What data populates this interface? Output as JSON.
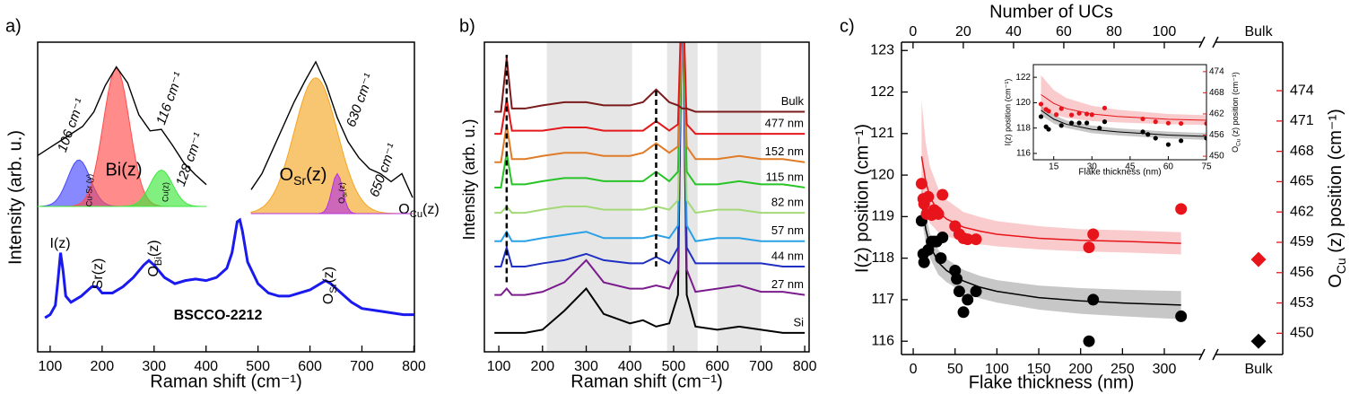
{
  "chart_data": [
    {
      "type": "line",
      "panel_label": "a)",
      "xlabel": "Raman shift (cm⁻¹)",
      "ylabel": "Intensity (arb. u.)",
      "xlim": [
        76,
        801
      ],
      "xticks": [
        100,
        200,
        300,
        400,
        500,
        600,
        700,
        800
      ],
      "ylim": [
        0,
        10
      ],
      "x": [
        90,
        100,
        110,
        115,
        120,
        125,
        130,
        140,
        160,
        180,
        190,
        200,
        220,
        240,
        260,
        280,
        290,
        300,
        320,
        340,
        360,
        380,
        400,
        420,
        440,
        450,
        460,
        465,
        470,
        480,
        500,
        520,
        540,
        560,
        580,
        600,
        620,
        630,
        640,
        660,
        680,
        700,
        740,
        780,
        800
      ],
      "series": [
        {
          "name": "BSCCO-2212",
          "color": "#1a1aee",
          "values": [
            1.1,
            1.2,
            1.5,
            2.3,
            3.2,
            2.6,
            1.8,
            1.6,
            1.8,
            2.1,
            2.1,
            1.9,
            1.9,
            2.1,
            2.4,
            2.8,
            2.95,
            2.8,
            2.4,
            2.2,
            2.3,
            2.35,
            2.3,
            2.4,
            2.7,
            3.2,
            4.2,
            4.26,
            3.9,
            2.9,
            2.2,
            1.9,
            1.8,
            1.8,
            1.9,
            2.0,
            2.2,
            2.3,
            2.2,
            1.9,
            1.6,
            1.4,
            1.3,
            1.2,
            1.2
          ]
        }
      ],
      "peaks": [
        {
          "text": "I(z)"
        },
        {
          "text": "Sr(z)"
        },
        {
          "text": "O",
          "sub": "Bi",
          "suffix": "(z)"
        },
        {
          "text": "O",
          "sub": "Cu",
          "suffix": "(z)"
        },
        {
          "text": "O",
          "sub": "Sr",
          "suffix": "(z)"
        }
      ],
      "insets": [
        {
          "xlim": [
            95,
            140
          ],
          "ylim": [
            0,
            10
          ],
          "x": [
            95,
            98,
            101,
            104,
            107,
            110,
            113,
            116,
            119,
            122,
            125,
            128,
            131,
            134,
            137,
            140
          ],
          "values": [
            3.5,
            4.0,
            4.5,
            5.0,
            5.5,
            6.5,
            8.3,
            9.6,
            8.5,
            6.3,
            5.2,
            5.3,
            4.2,
            3.0,
            2.2,
            1.5
          ],
          "components": [
            {
              "label": "106 cm⁻¹",
              "name": "Cu-Sr (y)",
              "center": 106,
              "amplitude": 3.2,
              "width": 3,
              "color": "#4a4aff"
            },
            {
              "label": "116 cm⁻¹",
              "name": "Bi(z)",
              "center": 116,
              "amplitude": 9.5,
              "width": 3.5,
              "color": "#ff4d4d"
            },
            {
              "label": "128 cm⁻¹",
              "name": "Cu(z)",
              "center": 128,
              "amplitude": 2.5,
              "width": 3,
              "color": "#3ee83e"
            }
          ]
        },
        {
          "xlim": [
            570,
            720
          ],
          "ylim": [
            0,
            10
          ],
          "x": [
            570,
            580,
            590,
            600,
            610,
            620,
            630,
            640,
            650,
            660,
            670,
            680,
            690,
            700,
            710,
            720
          ],
          "values": [
            1.5,
            2.5,
            4.0,
            5.5,
            7.0,
            8.3,
            9.5,
            8.0,
            6.0,
            4.5,
            3.5,
            2.8,
            2.5,
            2.0,
            2.5,
            1.0
          ],
          "components": [
            {
              "label": "630 cm⁻¹",
              "name": {
                "text": "O",
                "sub": "Sr",
                "suffix": "(z)"
              },
              "center": 630,
              "amplitude": 8.5,
              "width": 20,
              "color": "#f5a623"
            },
            {
              "label": "650 cm⁻¹",
              "name": {
                "text": "O",
                "sub": "Sr",
                "suffix": "(z)"
              },
              "center": 650,
              "amplitude": 2.5,
              "width": 5,
              "color": "#b534e0"
            }
          ]
        }
      ]
    },
    {
      "type": "line",
      "panel_label": "b)",
      "xlabel": "Raman shift (cm⁻¹)",
      "ylabel": "Intensity (arb. u.)",
      "xlim": [
        67,
        810
      ],
      "xticks": [
        100,
        200,
        300,
        400,
        500,
        600,
        700,
        800
      ],
      "ylim": [
        0,
        9.8
      ],
      "x": [
        90,
        105,
        118,
        130,
        160,
        200,
        250,
        300,
        340,
        400,
        430,
        460,
        490,
        510,
        520,
        530,
        550,
        600,
        650,
        700,
        750,
        800
      ],
      "regions": [
        [
          210,
          405
        ],
        [
          485,
          555
        ],
        [
          600,
          700
        ]
      ],
      "dashed": [
        {
          "x": 118,
          "y": [
            2.2,
            9.4
          ]
        },
        {
          "x": 460,
          "y": [
            2.7,
            8.3
          ]
        }
      ],
      "series": [
        {
          "name": "Si",
          "color": "#000000",
          "values": [
            0.6,
            0.6,
            0.6,
            0.6,
            0.6,
            0.7,
            1.3,
            2.0,
            1.2,
            0.9,
            1.0,
            0.8,
            0.9,
            1.8,
            12,
            1.8,
            0.8,
            0.7,
            0.8,
            0.7,
            0.6,
            0.6
          ]
        },
        {
          "name": "27 nm",
          "color": "#7a1c8c",
          "values": [
            1.8,
            1.8,
            2.0,
            1.8,
            1.8,
            1.9,
            2.2,
            2.9,
            2.2,
            2.0,
            2.0,
            2.1,
            2.0,
            2.6,
            12,
            2.6,
            1.9,
            2.0,
            2.1,
            1.9,
            1.9,
            1.8
          ]
        },
        {
          "name": "44 nm",
          "color": "#1f2fc2",
          "values": [
            2.7,
            2.7,
            3.3,
            2.7,
            2.7,
            2.8,
            2.9,
            3.1,
            2.9,
            2.8,
            2.8,
            3.0,
            2.8,
            3.3,
            12,
            3.3,
            2.8,
            2.8,
            2.8,
            2.8,
            2.7,
            2.7
          ]
        },
        {
          "name": "57 nm",
          "color": "#2aa0e6",
          "values": [
            3.5,
            3.5,
            3.8,
            3.5,
            3.5,
            3.6,
            3.7,
            3.8,
            3.6,
            3.6,
            3.6,
            3.7,
            3.6,
            4.0,
            12,
            4.0,
            3.5,
            3.6,
            3.6,
            3.5,
            3.5,
            3.5
          ]
        },
        {
          "name": "82 nm",
          "color": "#a3d977",
          "values": [
            4.4,
            4.4,
            4.6,
            4.4,
            4.4,
            4.5,
            4.6,
            4.6,
            4.5,
            4.5,
            4.5,
            4.6,
            4.5,
            4.8,
            12,
            4.8,
            4.4,
            4.5,
            4.5,
            4.4,
            4.4,
            4.4
          ]
        },
        {
          "name": "115 nm",
          "color": "#27c427",
          "values": [
            5.2,
            5.2,
            6.3,
            5.3,
            5.3,
            5.4,
            5.5,
            5.5,
            5.4,
            5.4,
            5.4,
            5.7,
            5.4,
            5.7,
            12,
            5.7,
            5.3,
            5.3,
            5.4,
            5.3,
            5.3,
            5.2
          ]
        },
        {
          "name": "152 nm",
          "color": "#e07b28",
          "values": [
            6.0,
            6.0,
            7.2,
            6.1,
            6.1,
            6.2,
            6.3,
            6.3,
            6.2,
            6.2,
            6.3,
            6.6,
            6.3,
            6.5,
            12,
            6.5,
            6.1,
            6.1,
            6.2,
            6.1,
            6.1,
            6.0
          ]
        },
        {
          "name": "477 nm",
          "color": "#e3191c",
          "values": [
            6.9,
            6.9,
            8.0,
            7.0,
            7.0,
            7.0,
            7.1,
            7.1,
            7.0,
            7.0,
            7.0,
            7.3,
            7.0,
            7.2,
            12,
            7.2,
            6.9,
            6.9,
            6.9,
            6.9,
            6.9,
            6.9
          ]
        },
        {
          "name": "Bulk",
          "color": "#7b1a1a",
          "values": [
            7.6,
            7.6,
            9.3,
            7.7,
            7.7,
            7.8,
            7.9,
            7.9,
            7.8,
            7.8,
            7.9,
            8.3,
            7.9,
            7.8,
            7.7,
            7.7,
            7.6,
            7.6,
            7.6,
            7.6,
            7.6,
            7.6
          ]
        }
      ]
    },
    {
      "type": "scatter",
      "panel_label": "c)",
      "xlabel": "Flake thickness (nm)",
      "x2label": "Number of UCs",
      "ylabel": "I(z) position (cm⁻¹)",
      "y2label": {
        "text": "O",
        "sub": "Cu",
        "suffix": " (z) position (cm⁻¹)"
      },
      "bulk_label": "Bulk",
      "xlim": [
        -14,
        345
      ],
      "xticks": [
        0,
        50,
        100,
        150,
        200,
        250,
        300
      ],
      "x2lim": [
        -4.6,
        115
      ],
      "x2ticks": [
        0,
        20,
        40,
        60,
        80,
        100
      ],
      "ylim": [
        115.68,
        123.2
      ],
      "yticks": [
        116,
        117,
        118,
        119,
        120,
        121,
        122,
        123
      ],
      "y2lim": [
        447.9,
        478.8
      ],
      "y2ticks": [
        450,
        453,
        456,
        459,
        462,
        465,
        468,
        471,
        474
      ],
      "series": [
        {
          "color": "#000000",
          "x": [
            10,
            12,
            13,
            18,
            22,
            25,
            28,
            33,
            35,
            50,
            52,
            55,
            60,
            65,
            75,
            210,
            215,
            320
          ],
          "values": [
            118.9,
            118.1,
            117.9,
            118.2,
            118.4,
            118.4,
            118.4,
            118.0,
            118.5,
            117.7,
            117.5,
            117.2,
            116.7,
            117.0,
            117.2,
            116.0,
            117.0,
            116.6
          ],
          "bulk": 116.0
        },
        {
          "color": "#e8141b",
          "axis": "y2",
          "x": [
            10,
            12,
            13,
            16,
            18,
            22,
            25,
            28,
            30,
            35,
            50,
            55,
            60,
            65,
            75,
            210,
            215,
            320
          ],
          "values": [
            464.8,
            463.3,
            462.8,
            461.8,
            463.5,
            461.7,
            462.2,
            462.0,
            461.8,
            463.7,
            460.6,
            459.8,
            459.4,
            459.3,
            459.3,
            458.5,
            459.8,
            462.3
          ],
          "bulk": 457.3
        }
      ],
      "fits": [
        {
          "color": "#000000",
          "x": [
            10,
            15,
            20,
            30,
            40,
            60,
            80,
            100,
            150,
            200,
            250,
            320
          ],
          "values": [
            119.4,
            118.7,
            118.3,
            117.9,
            117.7,
            117.45,
            117.3,
            117.2,
            117.05,
            116.97,
            116.92,
            116.87
          ],
          "lower": [
            119.0,
            118.35,
            118.0,
            117.6,
            117.42,
            117.18,
            117.03,
            116.93,
            116.76,
            116.66,
            116.6,
            116.53
          ],
          "upper": [
            119.8,
            119.05,
            118.6,
            118.2,
            117.98,
            117.72,
            117.57,
            117.47,
            117.34,
            117.28,
            117.24,
            117.21
          ]
        },
        {
          "color": "#e8141b",
          "axis": "y2",
          "x": [
            10,
            15,
            20,
            30,
            40,
            60,
            80,
            100,
            150,
            200,
            250,
            320
          ],
          "values": [
            467.5,
            465.0,
            463.5,
            462.0,
            461.3,
            460.5,
            460.1,
            459.8,
            459.4,
            459.2,
            459.1,
            458.9
          ],
          "lower": [
            463.0,
            461.8,
            460.9,
            460.0,
            459.6,
            459.1,
            458.8,
            458.6,
            458.3,
            458.1,
            458.0,
            457.8
          ],
          "upper": [
            473.0,
            468.8,
            466.5,
            464.3,
            463.2,
            462.0,
            461.5,
            461.1,
            460.6,
            460.3,
            460.2,
            460.0
          ]
        }
      ],
      "inset": {
        "xlabel": "Flake thickness (nm)",
        "ylabel": "I(z) position (cm⁻¹)",
        "y2label": {
          "text": "O",
          "sub": "Cu",
          "suffix": " (z) position (cm⁻¹)"
        },
        "xlim": [
          7,
          75
        ],
        "xticks": [
          15,
          30,
          45,
          60,
          75
        ],
        "ylim": [
          115.5,
          123
        ],
        "yticks": [
          116,
          118,
          120,
          122
        ],
        "y2lim": [
          449,
          476
        ],
        "y2ticks": [
          450,
          456,
          462,
          468,
          474
        ]
      }
    }
  ]
}
